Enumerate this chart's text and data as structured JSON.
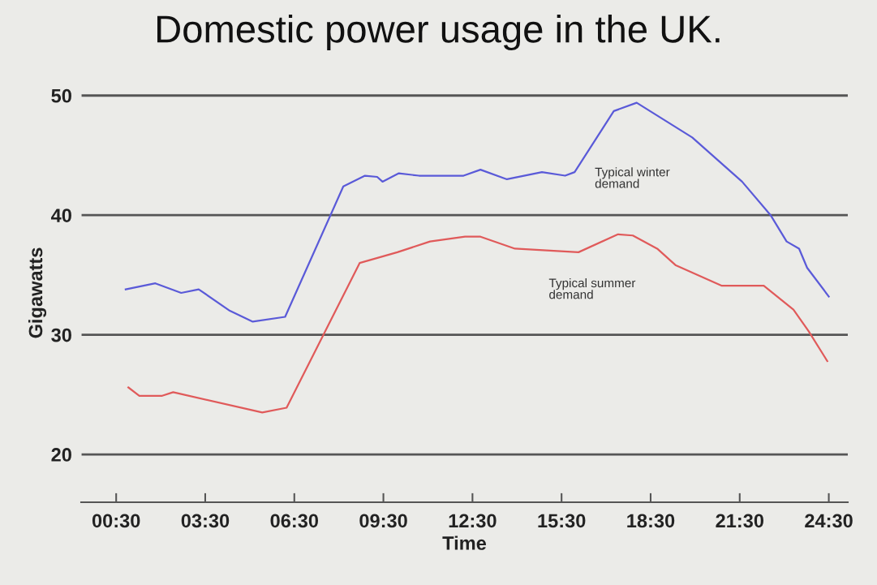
{
  "chart_data": {
    "type": "line",
    "title": "Domestic power usage in the UK.",
    "xlabel": "Time",
    "ylabel": "Gigawatts",
    "xlim": [
      -0.68,
      25.14
    ],
    "ylim": [
      16,
      51
    ],
    "xticks": [
      {
        "value": 0.5,
        "label": "00:30"
      },
      {
        "value": 3.5,
        "label": "03:30"
      },
      {
        "value": 6.5,
        "label": "06:30"
      },
      {
        "value": 9.5,
        "label": "09:30"
      },
      {
        "value": 12.5,
        "label": "12:30"
      },
      {
        "value": 15.5,
        "label": "15:30"
      },
      {
        "value": 18.5,
        "label": "18:30"
      },
      {
        "value": 21.5,
        "label": "21:30"
      },
      {
        "value": 24.5,
        "label": "24:30"
      }
    ],
    "yticks": [
      20,
      30,
      40,
      50
    ],
    "grid": "y",
    "legend": false,
    "marker": "none",
    "line_style": "solid",
    "series": [
      {
        "color": "#5a5ad8",
        "x": [
          0.82,
          1.82,
          2.69,
          3.28,
          4.33,
          5.1,
          6.19,
          8.15,
          8.88,
          9.29,
          9.47,
          10.02,
          10.7,
          12.2,
          12.77,
          13.66,
          14.84,
          15.62,
          15.94,
          17.26,
          18.03,
          19.9,
          21.58,
          22.54,
          23.08,
          23.5,
          23.77,
          24.5
        ],
        "values": [
          33.8,
          34.3,
          33.5,
          33.8,
          32.0,
          31.1,
          31.5,
          42.4,
          43.3,
          43.2,
          42.8,
          43.5,
          43.3,
          43.3,
          43.8,
          43.0,
          43.6,
          43.3,
          43.6,
          48.7,
          49.4,
          46.5,
          42.8,
          40.0,
          37.8,
          37.2,
          35.6,
          33.2
        ]
      },
      {
        "color": "#e05a5a",
        "x": [
          0.91,
          1.28,
          2.05,
          2.42,
          5.42,
          6.24,
          8.7,
          9.97,
          11.07,
          12.25,
          12.77,
          13.93,
          16.07,
          17.4,
          17.9,
          18.72,
          19.35,
          20.9,
          22.31,
          23.31,
          23.82,
          24.45
        ],
        "values": [
          25.6,
          24.9,
          24.9,
          25.2,
          23.5,
          23.9,
          36.0,
          36.9,
          37.8,
          38.2,
          38.2,
          37.2,
          36.9,
          38.4,
          38.3,
          37.2,
          35.8,
          34.1,
          34.1,
          32.1,
          30.3,
          27.8
        ]
      }
    ],
    "annotations": [
      "Typical winter\ndemand",
      "Typical summer\ndemand"
    ]
  }
}
